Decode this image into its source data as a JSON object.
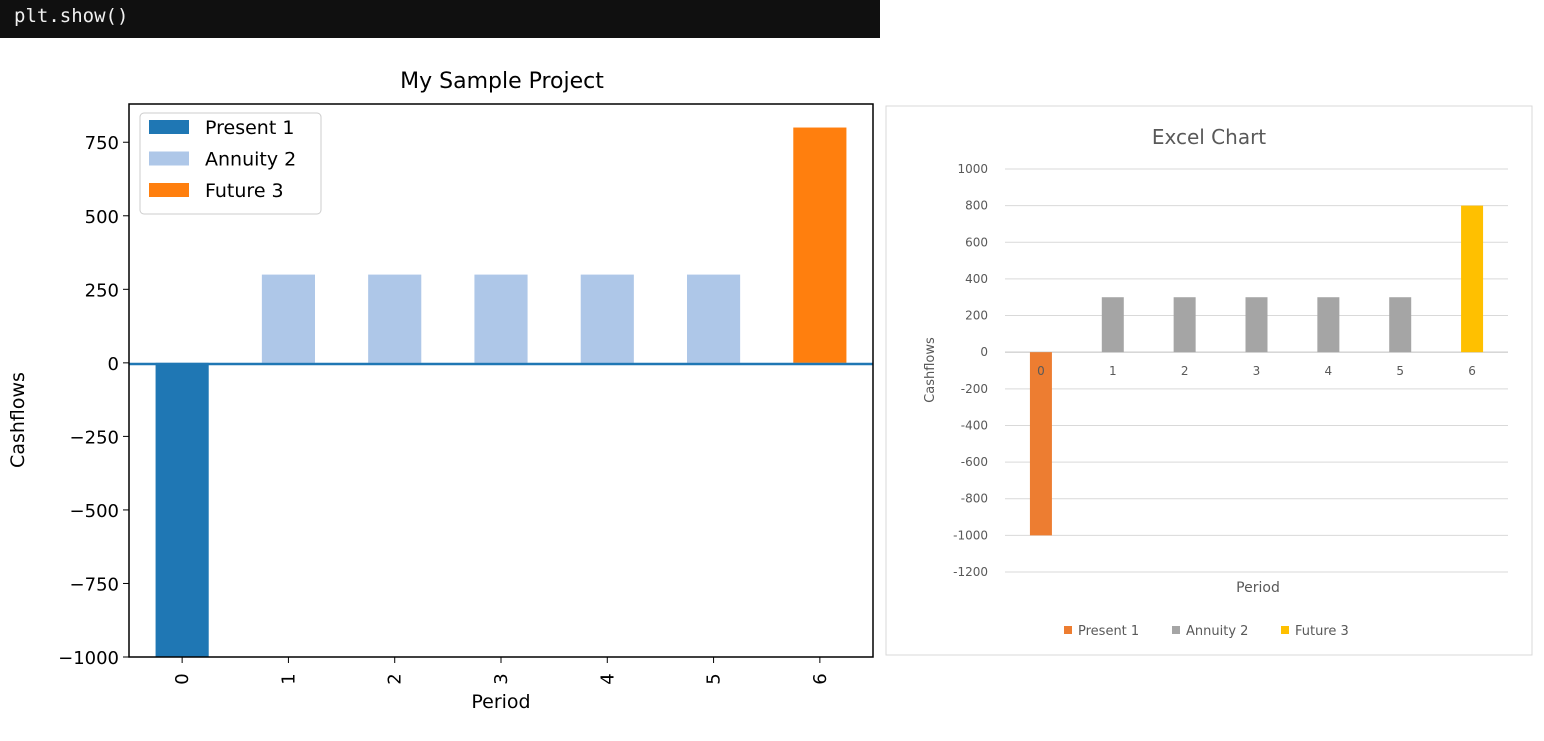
{
  "code_cell": {
    "text": "plt.show()"
  },
  "chart_data": [
    {
      "type": "bar",
      "title": "My Sample Project",
      "xlabel": "Period",
      "ylabel": "Cashflows",
      "categories": [
        "0",
        "1",
        "2",
        "3",
        "4",
        "5",
        "6"
      ],
      "ylim": [
        -1000,
        880
      ],
      "yticks": [
        -1000,
        -750,
        -500,
        -250,
        0,
        250,
        500,
        750
      ],
      "ytick_labels": [
        "−1000",
        "−750",
        "−500",
        "−250",
        "0",
        "250",
        "500",
        "750"
      ],
      "legend_position": "top-left",
      "series": [
        {
          "name": "Present 1",
          "color": "#1f77b4",
          "values": [
            -1000,
            null,
            null,
            null,
            null,
            null,
            null
          ]
        },
        {
          "name": "Annuity 2",
          "color": "#aec7e8",
          "values": [
            null,
            300,
            300,
            300,
            300,
            300,
            null
          ]
        },
        {
          "name": "Future 3",
          "color": "#ff7f0e",
          "values": [
            null,
            null,
            null,
            null,
            null,
            null,
            800
          ]
        }
      ],
      "zero_line_color": "#1f77b4",
      "grid": false
    },
    {
      "type": "bar",
      "title": "Excel Chart",
      "xlabel": "Period",
      "ylabel": "Cashflows",
      "categories": [
        "0",
        "1",
        "2",
        "3",
        "4",
        "5",
        "6"
      ],
      "ylim": [
        -1200,
        1000
      ],
      "yticks": [
        -1200,
        -1000,
        -800,
        -600,
        -400,
        -200,
        0,
        200,
        400,
        600,
        800,
        1000
      ],
      "legend_position": "bottom",
      "series": [
        {
          "name": "Present 1",
          "color": "#ed7d31",
          "values": [
            -1000,
            null,
            null,
            null,
            null,
            null,
            null
          ]
        },
        {
          "name": "Annuity 2",
          "color": "#a5a5a5",
          "values": [
            null,
            300,
            300,
            300,
            300,
            300,
            null
          ]
        },
        {
          "name": "Future 3",
          "color": "#ffc000",
          "values": [
            null,
            null,
            null,
            null,
            null,
            null,
            800
          ]
        }
      ],
      "grid": true
    }
  ]
}
